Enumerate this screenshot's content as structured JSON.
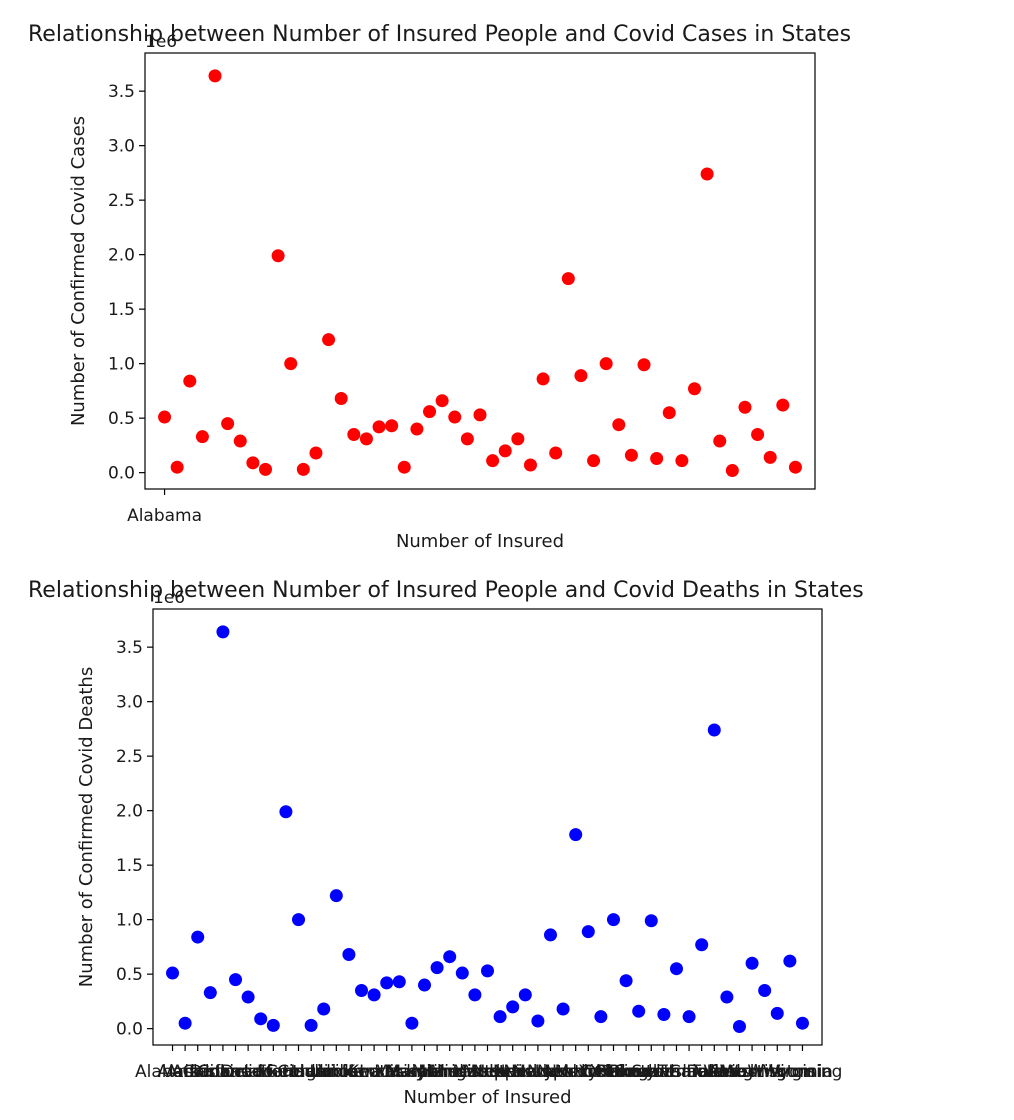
{
  "chart_data": [
    {
      "type": "scatter",
      "title": "Relationship between Number of Insured People and Covid Cases in States",
      "xlabel": "Number of Insured",
      "ylabel": "Number of Confirmed Covid Cases",
      "offset_text": "1e6",
      "color": "#ff0000",
      "ylim": [
        -0.15,
        3.85
      ],
      "yticks": [
        0.0,
        0.5,
        1.0,
        1.5,
        2.0,
        2.5,
        3.0,
        3.5
      ],
      "ytick_labels": [
        "0.0",
        "0.5",
        "1.0",
        "1.5",
        "2.0",
        "2.5",
        "3.0",
        "3.5"
      ],
      "xtick_labels": [
        "Alabama"
      ],
      "grid": false,
      "y": [
        0.51,
        0.05,
        0.84,
        0.33,
        3.64,
        0.45,
        0.29,
        0.09,
        0.03,
        1.99,
        1.0,
        0.03,
        0.18,
        1.22,
        0.68,
        0.35,
        0.31,
        0.42,
        0.43,
        0.05,
        0.4,
        0.56,
        0.66,
        0.51,
        0.31,
        0.53,
        0.11,
        0.2,
        0.31,
        0.07,
        0.86,
        0.18,
        1.78,
        0.89,
        0.11,
        1.0,
        0.44,
        0.16,
        0.99,
        0.13,
        0.55,
        0.11,
        0.77,
        2.74,
        0.29,
        0.02,
        0.6,
        0.35,
        0.14,
        0.62,
        0.05
      ]
    },
    {
      "type": "scatter",
      "title": "Relationship between Number of Insured People and Covid Deaths in States",
      "xlabel": "Number of Insured",
      "ylabel": "Number of Confirmed Covid Deaths",
      "offset_text": "1e6",
      "color": "#0000ff",
      "ylim": [
        -0.15,
        3.85
      ],
      "yticks": [
        0.0,
        0.5,
        1.0,
        1.5,
        2.0,
        2.5,
        3.0,
        3.5
      ],
      "ytick_labels": [
        "0.0",
        "0.5",
        "1.0",
        "1.5",
        "2.0",
        "2.5",
        "3.0",
        "3.5"
      ],
      "xtick_labels": [
        "Alabama",
        "Alaska",
        "Arizona",
        "Arkansas",
        "California",
        "Colorado",
        "Connecticut",
        "Delaware",
        "District of Columbia",
        "Florida",
        "Georgia",
        "Hawaii",
        "Idaho",
        "Illinois",
        "Indiana",
        "Iowa",
        "Kansas",
        "Kentucky",
        "Louisiana",
        "Maine",
        "Maryland",
        "Massachusetts",
        "Michigan",
        "Minnesota",
        "Mississippi",
        "Missouri",
        "Montana",
        "Nebraska",
        "Nevada",
        "New Hampshire",
        "New Jersey",
        "New Mexico",
        "New York",
        "North Carolina",
        "North Dakota",
        "Ohio",
        "Oklahoma",
        "Oregon",
        "Pennsylvania",
        "Rhode Island",
        "South Carolina",
        "South Dakota",
        "Tennessee",
        "Texas",
        "Utah",
        "Vermont",
        "Virginia",
        "Washington",
        "West Virginia",
        "Wisconsin",
        "Wyoming"
      ],
      "grid": false,
      "y": [
        0.51,
        0.05,
        0.84,
        0.33,
        3.64,
        0.45,
        0.29,
        0.09,
        0.03,
        1.99,
        1.0,
        0.03,
        0.18,
        1.22,
        0.68,
        0.35,
        0.31,
        0.42,
        0.43,
        0.05,
        0.4,
        0.56,
        0.66,
        0.51,
        0.31,
        0.53,
        0.11,
        0.2,
        0.31,
        0.07,
        0.86,
        0.18,
        1.78,
        0.89,
        0.11,
        1.0,
        0.44,
        0.16,
        0.99,
        0.13,
        0.55,
        0.11,
        0.77,
        2.74,
        0.29,
        0.02,
        0.6,
        0.35,
        0.14,
        0.62,
        0.05
      ]
    }
  ]
}
